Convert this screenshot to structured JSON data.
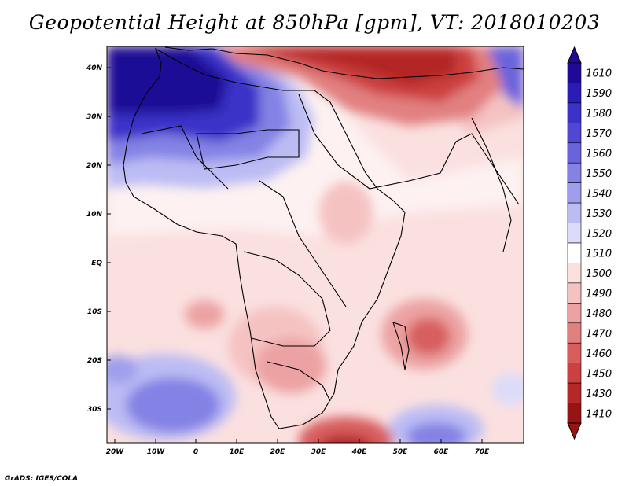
{
  "title": "Geopotential Height at 850hPa [gpm], VT: 2018010203",
  "footer": "GrADS: IGES/COLA",
  "axes": {
    "lat_labels": [
      "40N",
      "30N",
      "20N",
      "10N",
      "EQ",
      "10S",
      "20S",
      "30S"
    ],
    "lon_labels": [
      "20W",
      "10W",
      "0",
      "10E",
      "20E",
      "30E",
      "40E",
      "50E",
      "60E",
      "70E"
    ]
  },
  "colorbar": {
    "levels": [
      "1610",
      "1590",
      "1580",
      "1570",
      "1560",
      "1550",
      "1540",
      "1530",
      "1520",
      "1510",
      "1500",
      "1490",
      "1480",
      "1470",
      "1460",
      "1450",
      "1430",
      "1410"
    ],
    "colors": [
      "#1e0a96",
      "#2a1cb4",
      "#3b32c8",
      "#5048d2",
      "#6a64dc",
      "#8482e4",
      "#9e9eec",
      "#bcbcf4",
      "#dcdcfa",
      "#ffffff",
      "#fbe0e0",
      "#f5c2c2",
      "#eca2a2",
      "#e28080",
      "#d85e5e",
      "#cc4040",
      "#b42828",
      "#961414"
    ]
  },
  "map_fields": {
    "high_color": "#2a1cb4",
    "low_color": "#b42828",
    "coast_color": "#000000"
  },
  "chart_data": {
    "type": "heatmap",
    "title": "Geopotential Height at 850hPa [gpm], VT: 2018010203",
    "variable": "Geopotential Height at 850hPa",
    "units": "gpm",
    "valid_time": "2018010203",
    "lon_range": [
      -22,
      80
    ],
    "lat_range": [
      -37,
      45
    ],
    "contour_levels": [
      1410,
      1430,
      1450,
      1460,
      1470,
      1480,
      1490,
      1500,
      1510,
      1520,
      1530,
      1540,
      1550,
      1560,
      1570,
      1580,
      1590,
      1610
    ],
    "features": [
      {
        "name": "high over NW Africa / N Atlantic",
        "lon": -18,
        "lat": 38,
        "value": 1600
      },
      {
        "name": "ridge over Sahara",
        "lon": 5,
        "lat": 28,
        "value": 1560
      },
      {
        "name": "high SE Atlantic",
        "lon": -3,
        "lat": -28,
        "value": 1535
      },
      {
        "name": "high S Indian Ocean",
        "lon": 55,
        "lat": -34,
        "value": 1535
      },
      {
        "name": "low over Eastern Mediterranean / Middle East",
        "lon": 35,
        "lat": 40,
        "value": 1440
      },
      {
        "name": "low over Iran",
        "lon": 50,
        "lat": 37,
        "value": 1430
      },
      {
        "name": "low near Madagascar",
        "lon": 57,
        "lat": -15,
        "value": 1465
      },
      {
        "name": "low off S Africa",
        "lon": 35,
        "lat": -36,
        "value": 1440
      }
    ]
  }
}
